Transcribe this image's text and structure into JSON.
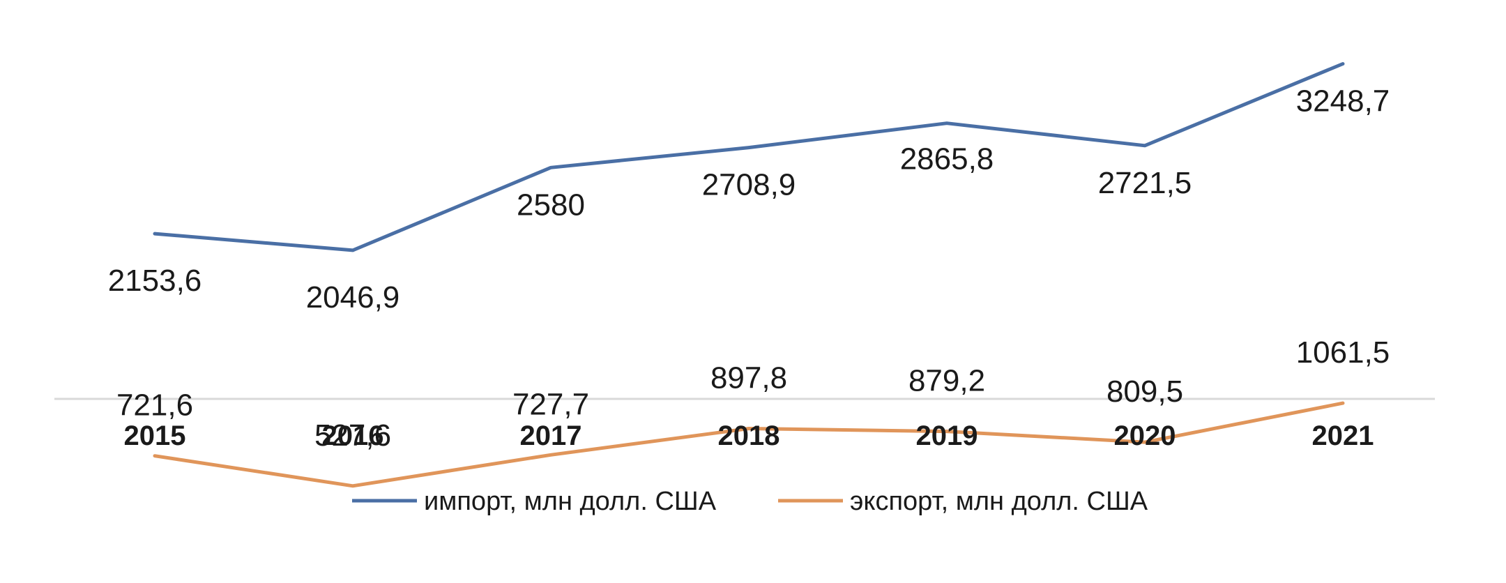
{
  "chart_data": {
    "type": "line",
    "categories": [
      "2015",
      "2016",
      "2017",
      "2018",
      "2019",
      "2020",
      "2021"
    ],
    "series": [
      {
        "name": "импорт, млн долл. США",
        "values": [
          2153.6,
          2046.9,
          2580,
          2708.9,
          2865.8,
          2721.5,
          3248.7
        ],
        "labels": [
          "2153,6",
          "2046,9",
          "2580",
          "2708,9",
          "2865,8",
          "2721,5",
          "3248,7"
        ],
        "color": "#4a6fa5"
      },
      {
        "name": "экспорт, млн долл. США",
        "values": [
          721.6,
          527.6,
          727.7,
          897.8,
          879.2,
          809.5,
          1061.5
        ],
        "labels": [
          "721,6",
          "527,6",
          "727,7",
          "897,8",
          "879,2",
          "809,5",
          "1061,5"
        ],
        "color": "#e0955a"
      }
    ],
    "title": "",
    "xlabel": "",
    "ylabel": "",
    "ylim": [
      0,
      3600
    ],
    "grid": false,
    "legend": "bottom",
    "axis_color": "#d9d9d9"
  }
}
